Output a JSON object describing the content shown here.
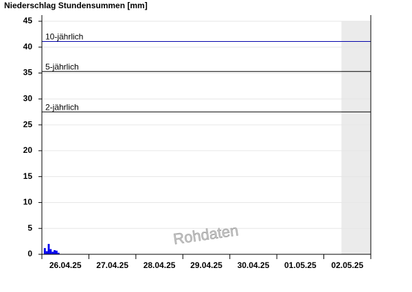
{
  "chart_data": {
    "type": "bar",
    "title": "Niederschlag Stundensummen [mm]",
    "x": [
      1,
      2,
      3,
      4,
      5,
      6,
      7,
      8
    ],
    "values": [
      1.2,
      0.6,
      2.0,
      1.0,
      0.5,
      0.8,
      0.7,
      0.3
    ],
    "color": "#0000ee",
    "xlim": [
      0,
      168
    ],
    "day_labels": [
      "26.04.25",
      "27.04.25",
      "28.04.25",
      "29.04.25",
      "30.04.25",
      "01.05.25",
      "02.05.25"
    ],
    "ylim": [
      0,
      45
    ],
    "yticks": [
      0,
      5,
      10,
      15,
      20,
      25,
      30,
      35,
      40,
      45
    ],
    "grid": true,
    "shaded_from": 153,
    "reference_lines": [
      {
        "label": "10-jährlich",
        "value": 41.1,
        "color": "#0000aa"
      },
      {
        "label": "5-jährlich",
        "value": 35.3,
        "color": "#000000"
      },
      {
        "label": "2-jährlich",
        "value": 27.5,
        "color": "#000000"
      }
    ],
    "watermark": "Rohdaten"
  }
}
